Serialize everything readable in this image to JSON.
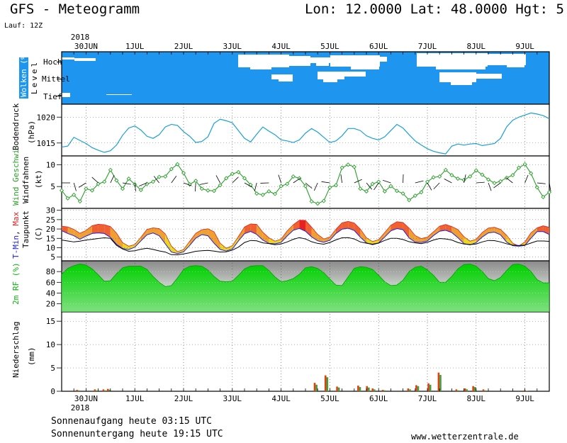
{
  "header": {
    "title": "GFS - Meteogramm",
    "coords": "Lon: 12.0000 Lat: 48.0000 Hgt: 5",
    "run": "Lauf: 12Z"
  },
  "footer": {
    "sunrise": "Sonnenaufgang heute 03:15 UTC",
    "sunset": "Sonnenuntergang heute 19:15 UTC",
    "site": "www.wetterzentrale.de"
  },
  "colors": {
    "cloud_sky": "#1e96f0",
    "pressure_line": "#1aa0d8",
    "wind_line": "#2aa02a",
    "temp_fill_low": "#e8d820",
    "temp_fill_mid": "#f0a030",
    "temp_fill_high": "#f06030",
    "temp_fill_peak": "#e82020",
    "min_label": "#2020e0",
    "max_label": "#e02020",
    "rh_fill": "#10c010",
    "precip_bar_a": "#e04010",
    "precip_bar_b": "#40a040"
  },
  "chart_data": {
    "type": "meteogram",
    "time_axis": {
      "year": "2018",
      "day_labels": [
        "30JUN",
        "1JUL",
        "2JUL",
        "3JUL",
        "4JUL",
        "5JUL",
        "6JUL",
        "7JUL",
        "8JUL",
        "9JUL"
      ],
      "start": "2018-06-29T12:00Z",
      "step_hours": 3,
      "steps": 81
    },
    "clouds": {
      "ylabel": "Wolken (%)",
      "level_label": "Level",
      "levels": [
        "Hoch",
        "Mittel",
        "Tief"
      ]
    },
    "pressure": {
      "ylabel": "Bodendruck",
      "unit": "(hPa)",
      "ylim": [
        1012.5,
        1022.5
      ],
      "ticks": [
        1015,
        1020
      ],
      "values": [
        1014.2,
        1014.4,
        1016.1,
        1015.5,
        1014.9,
        1014.1,
        1013.6,
        1013.2,
        1013.5,
        1014.6,
        1016.5,
        1017.9,
        1018.3,
        1017.5,
        1016.3,
        1015.9,
        1016.6,
        1018.1,
        1018.6,
        1018.4,
        1017.2,
        1016.3,
        1015.1,
        1015.3,
        1016.2,
        1018.8,
        1019.6,
        1019.3,
        1018.9,
        1017.4,
        1015.9,
        1015.2,
        1016.7,
        1018.1,
        1017.3,
        1016.6,
        1015.6,
        1015.4,
        1015.1,
        1015.6,
        1016.9,
        1017.8,
        1017.1,
        1016.1,
        1015.1,
        1015.4,
        1016.4,
        1017.8,
        1017.8,
        1017.4,
        1016.4,
        1015.9,
        1015.6,
        1016.2,
        1017.4,
        1018.6,
        1017.9,
        1016.6,
        1015.4,
        1014.6,
        1013.9,
        1013.4,
        1013.1,
        1012.9,
        1014.4,
        1014.8,
        1014.6,
        1014.8,
        1014.9,
        1014.5,
        1014.7,
        1014.9,
        1015.9,
        1018.1,
        1019.4,
        1020.0,
        1020.4,
        1020.8,
        1020.6,
        1020.3,
        1019.7
      ]
    },
    "wind": {
      "ylabel": "Wind Geschwi.",
      "sublabel": "Windfahnen",
      "unit": "(kt)",
      "ylim": [
        0,
        12
      ],
      "ticks": [
        5,
        10
      ],
      "values": [
        4.1,
        2.3,
        3.1,
        1.6,
        4.5,
        4.1,
        5.6,
        6.1,
        8.8,
        6.4,
        4.5,
        6.8,
        5.5,
        4.2,
        5.6,
        6.1,
        7.2,
        7.3,
        9.0,
        10.1,
        8.1,
        5.5,
        6.3,
        4.5,
        4.1,
        4.0,
        5.3,
        6.9,
        7.9,
        8.3,
        6.9,
        5.4,
        3.4,
        3.1,
        3.9,
        3.3,
        5.1,
        5.6,
        7.3,
        6.9,
        5.1,
        1.6,
        1.1,
        1.7,
        4.8,
        5.3,
        9.3,
        10.0,
        9.5,
        4.5,
        3.9,
        5.6,
        6.1,
        3.9,
        5.1,
        4.0,
        3.4,
        1.9,
        2.9,
        3.7,
        6.1,
        7.1,
        7.3,
        8.8,
        7.6,
        6.8,
        6.5,
        7.3,
        8.7,
        7.7,
        6.6,
        5.8,
        6.2,
        7.0,
        7.6,
        9.3,
        10.1,
        8.0,
        4.8,
        2.6,
        3.7
      ]
    },
    "temperature": {
      "ylabel_parts": [
        "T-",
        "Min",
        ", ",
        "Max"
      ],
      "sublabel": "Taupunkt",
      "unit": "(C)",
      "ylim": [
        3,
        31
      ],
      "ticks": [
        5,
        10,
        15,
        20,
        25,
        30
      ],
      "tmax": [
        21.5,
        21.1,
        19.8,
        17.7,
        19.2,
        21.8,
        22.5,
        22.3,
        21.3,
        17.8,
        12.7,
        10.8,
        11.7,
        15.6,
        19.8,
        20.6,
        20.2,
        17.4,
        10.9,
        7.9,
        9.0,
        13.4,
        17.7,
        19.6,
        20.1,
        18.5,
        12.4,
        9.7,
        11.1,
        16.0,
        21.1,
        22.7,
        22.5,
        18.3,
        15.3,
        13.5,
        14.6,
        19.0,
        22.3,
        24.7,
        24.6,
        21.0,
        17.1,
        14.7,
        15.7,
        19.9,
        23.3,
        24.1,
        23.2,
        20.0,
        15.3,
        13.3,
        14.3,
        18.1,
        22.0,
        23.9,
        23.5,
        20.5,
        16.5,
        14.9,
        15.6,
        18.5,
        21.5,
        22.4,
        21.3,
        19.7,
        15.9,
        13.5,
        14.5,
        18.1,
        20.5,
        20.9,
        19.8,
        16.6,
        12.4,
        10.9,
        13.1,
        18.0,
        20.6,
        21.7,
        20.9
      ],
      "tmin": [
        19.1,
        17.6,
        16.4,
        14.5,
        16.2,
        17.6,
        17.9,
        17.6,
        15.5,
        11.8,
        9.6,
        9.0,
        10.3,
        13.7,
        16.9,
        17.9,
        16.4,
        12.1,
        7.7,
        6.9,
        7.8,
        11.2,
        15.1,
        17.0,
        16.4,
        12.4,
        9.1,
        8.2,
        9.3,
        13.6,
        17.5,
        18.7,
        17.1,
        14.1,
        12.3,
        12.1,
        12.8,
        16.3,
        19.3,
        20.3,
        18.8,
        15.8,
        13.7,
        12.9,
        14.0,
        17.6,
        19.9,
        20.4,
        19.2,
        15.6,
        12.6,
        11.6,
        12.5,
        15.7,
        19.0,
        20.2,
        19.6,
        15.2,
        13.0,
        12.8,
        13.6,
        16.5,
        18.8,
        19.3,
        18.1,
        15.4,
        12.2,
        11.5,
        12.7,
        15.7,
        17.9,
        18.3,
        16.9,
        13.0,
        11.1,
        10.8,
        11.2,
        15.1,
        18.6,
        18.6,
        17.1
      ],
      "dewpoint": [
        14.1,
        13.6,
        13.1,
        13.5,
        14.1,
        14.5,
        14.9,
        15.3,
        15.0,
        11.3,
        9.3,
        8.1,
        8.4,
        9.2,
        9.7,
        9.1,
        8.3,
        7.7,
        6.3,
        6.2,
        6.7,
        7.3,
        8.1,
        8.4,
        8.6,
        8.2,
        7.7,
        7.8,
        8.7,
        10.3,
        12.8,
        13.9,
        13.7,
        12.6,
        12.2,
        11.6,
        12.0,
        13.1,
        14.5,
        15.4,
        14.7,
        13.2,
        12.3,
        11.9,
        12.8,
        14.2,
        15.3,
        15.4,
        14.7,
        13.1,
        12.4,
        11.9,
        12.5,
        13.9,
        15.0,
        15.0,
        14.4,
        13.2,
        12.6,
        12.2,
        12.9,
        14.1,
        14.9,
        14.7,
        14.1,
        12.8,
        12.0,
        11.7,
        12.0,
        13.1,
        13.9,
        13.8,
        13.1,
        12.1,
        11.4,
        11.2,
        11.4,
        12.5,
        13.6,
        13.6,
        13.4
      ]
    },
    "humidity": {
      "ylabel": "2m RF (%)",
      "ylim": [
        5,
        100
      ],
      "ticks": [
        20,
        40,
        60,
        80
      ],
      "values": [
        75,
        86,
        91,
        94,
        92,
        85,
        74,
        62,
        63,
        76,
        87,
        90,
        90,
        90,
        84,
        71,
        60,
        52,
        54,
        68,
        84,
        90,
        91,
        90,
        83,
        71,
        62,
        61,
        62,
        73,
        85,
        90,
        91,
        91,
        82,
        70,
        61,
        63,
        67,
        75,
        87,
        89,
        86,
        78,
        66,
        55,
        54,
        70,
        86,
        89,
        88,
        84,
        73,
        61,
        54,
        55,
        64,
        80,
        88,
        90,
        83,
        73,
        60,
        60,
        71,
        85,
        93,
        94,
        90,
        80,
        67,
        63,
        69,
        82,
        93,
        94,
        90,
        80,
        65,
        59,
        59
      ]
    },
    "precip": {
      "ylabel": "Niederschlag",
      "unit": "(mm)",
      "ylim": [
        0,
        17
      ],
      "ticks": [
        0,
        5,
        10,
        15
      ],
      "bars": [
        {
          "x": 8.0,
          "a": 0.3,
          "b": 0.2
        },
        {
          "x": 16.8,
          "a": 0.4,
          "b": 0.2
        },
        {
          "x": 21.0,
          "a": 0.4,
          "b": 0.2
        },
        {
          "x": 23.2,
          "a": 0.5,
          "b": 0.3
        },
        {
          "x": 125.0,
          "a": 1.8,
          "b": 1.4
        },
        {
          "x": 130.3,
          "a": 3.4,
          "b": 3.0
        },
        {
          "x": 136.0,
          "a": 1.0,
          "b": 0.8
        },
        {
          "x": 146.4,
          "a": 1.2,
          "b": 0.9
        },
        {
          "x": 150.7,
          "a": 1.1,
          "b": 0.8
        },
        {
          "x": 153.5,
          "a": 0.6,
          "b": 0.4
        },
        {
          "x": 158.5,
          "a": 0.3,
          "b": 0.2
        },
        {
          "x": 171.0,
          "a": 0.6,
          "b": 0.4
        },
        {
          "x": 175.0,
          "a": 1.3,
          "b": 1.1
        },
        {
          "x": 181.0,
          "a": 1.7,
          "b": 1.4
        },
        {
          "x": 186.0,
          "a": 4.0,
          "b": 3.5
        },
        {
          "x": 194.7,
          "a": 0.4,
          "b": 0.2
        },
        {
          "x": 199.0,
          "a": 0.6,
          "b": 0.4
        },
        {
          "x": 203.0,
          "a": 1.1,
          "b": 0.9
        },
        {
          "x": 208.0,
          "a": 0.4,
          "b": 0.2
        },
        {
          "x": 228.5,
          "a": 0.2,
          "b": 0.1
        },
        {
          "x": 268.5,
          "a": 0.4,
          "b": 0.2
        },
        {
          "x": 273.0,
          "a": 0.9,
          "b": 0.7
        },
        {
          "x": 277.0,
          "a": 0.3,
          "b": 0.2
        }
      ]
    }
  }
}
